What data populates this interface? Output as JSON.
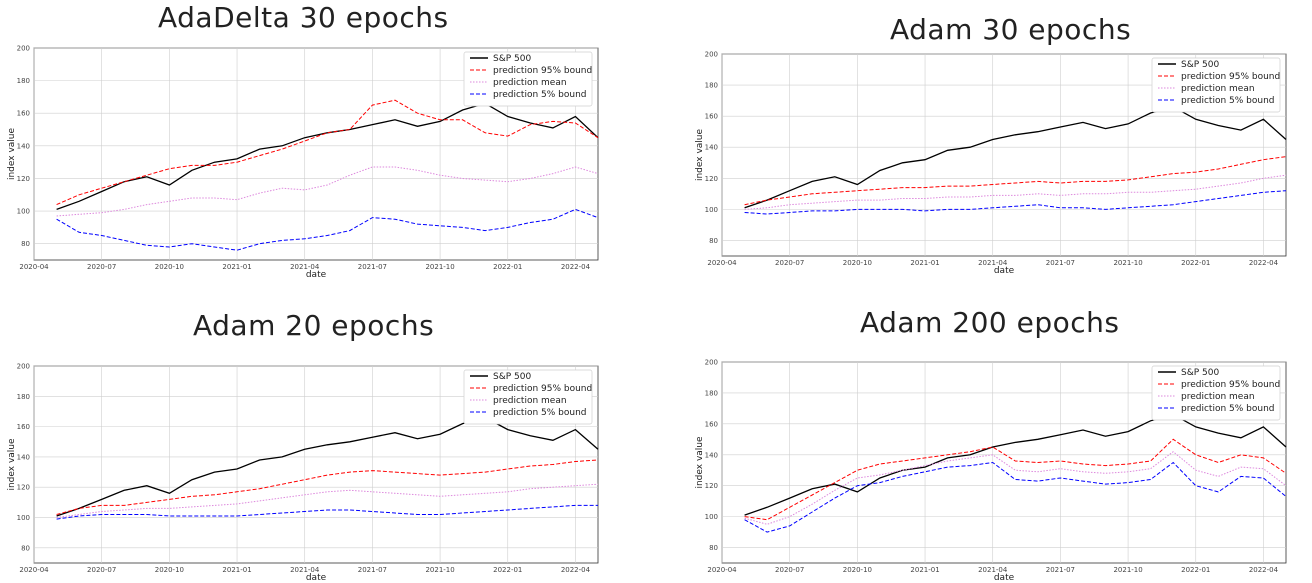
{
  "chart_data": [
    {
      "type": "line",
      "panel_title": "AdaDelta 30 epochs",
      "xlabel": "date",
      "ylabel": "index value",
      "ylim": [
        70,
        200
      ],
      "yticks": [
        80,
        100,
        120,
        140,
        160,
        180,
        200
      ],
      "xlim": [
        "2020-04",
        "2022-05"
      ],
      "xticks": [
        "2020-04",
        "2020-07",
        "2020-10",
        "2021-01",
        "2021-04",
        "2021-07",
        "2021-10",
        "2022-01",
        "2022-04"
      ],
      "grid": true,
      "legend_position": "top-right",
      "x": [
        "2020-05",
        "2020-06",
        "2020-07",
        "2020-08",
        "2020-09",
        "2020-10",
        "2020-11",
        "2020-12",
        "2021-01",
        "2021-02",
        "2021-03",
        "2021-04",
        "2021-05",
        "2021-06",
        "2021-07",
        "2021-08",
        "2021-09",
        "2021-10",
        "2021-11",
        "2021-12",
        "2022-01",
        "2022-02",
        "2022-03",
        "2022-04",
        "2022-05"
      ],
      "series": [
        {
          "name": "S&P 500",
          "color": "#000000",
          "style": "solid",
          "values": [
            101,
            106,
            112,
            118,
            121,
            116,
            125,
            130,
            132,
            138,
            140,
            145,
            148,
            150,
            153,
            156,
            152,
            155,
            162,
            166,
            158,
            154,
            151,
            158,
            145
          ]
        },
        {
          "name": "prediction 95% bound",
          "color": "#ff0000",
          "style": "dashed",
          "values": [
            104,
            110,
            114,
            118,
            122,
            126,
            128,
            128,
            130,
            134,
            138,
            143,
            148,
            150,
            165,
            168,
            160,
            156,
            156,
            148,
            146,
            153,
            155,
            154,
            145
          ]
        },
        {
          "name": "prediction mean",
          "color": "#dd88dd",
          "style": "dotted",
          "values": [
            97,
            98,
            99,
            101,
            104,
            106,
            108,
            108,
            107,
            111,
            114,
            113,
            116,
            122,
            127,
            127,
            125,
            122,
            120,
            119,
            118,
            120,
            123,
            127,
            123
          ]
        },
        {
          "name": "prediction 5% bound",
          "color": "#0000ff",
          "style": "dashed",
          "values": [
            95,
            87,
            85,
            82,
            79,
            78,
            80,
            78,
            76,
            80,
            82,
            83,
            85,
            88,
            96,
            95,
            92,
            91,
            90,
            88,
            90,
            93,
            95,
            101,
            96
          ]
        }
      ]
    },
    {
      "type": "line",
      "panel_title": "Adam 30 epochs",
      "xlabel": "date",
      "ylabel": "index value",
      "ylim": [
        70,
        200
      ],
      "yticks": [
        80,
        100,
        120,
        140,
        160,
        180,
        200
      ],
      "xlim": [
        "2020-04",
        "2022-05"
      ],
      "xticks": [
        "2020-04",
        "2020-07",
        "2020-10",
        "2021-01",
        "2021-04",
        "2021-07",
        "2021-10",
        "2022-01",
        "2022-04"
      ],
      "grid": true,
      "legend_position": "top-right",
      "x": [
        "2020-05",
        "2020-06",
        "2020-07",
        "2020-08",
        "2020-09",
        "2020-10",
        "2020-11",
        "2020-12",
        "2021-01",
        "2021-02",
        "2021-03",
        "2021-04",
        "2021-05",
        "2021-06",
        "2021-07",
        "2021-08",
        "2021-09",
        "2021-10",
        "2021-11",
        "2021-12",
        "2022-01",
        "2022-02",
        "2022-03",
        "2022-04",
        "2022-05"
      ],
      "series": [
        {
          "name": "S&P 500",
          "color": "#000000",
          "style": "solid",
          "values": [
            101,
            106,
            112,
            118,
            121,
            116,
            125,
            130,
            132,
            138,
            140,
            145,
            148,
            150,
            153,
            156,
            152,
            155,
            162,
            166,
            158,
            154,
            151,
            158,
            145
          ]
        },
        {
          "name": "prediction 95% bound",
          "color": "#ff0000",
          "style": "dashed",
          "values": [
            103,
            106,
            108,
            110,
            111,
            112,
            113,
            114,
            114,
            115,
            115,
            116,
            117,
            118,
            117,
            118,
            118,
            119,
            121,
            123,
            124,
            126,
            129,
            132,
            134
          ]
        },
        {
          "name": "prediction mean",
          "color": "#dd88dd",
          "style": "dotted",
          "values": [
            100,
            101,
            103,
            104,
            105,
            106,
            106,
            107,
            107,
            108,
            108,
            109,
            109,
            110,
            109,
            110,
            110,
            111,
            111,
            112,
            113,
            115,
            117,
            120,
            122
          ]
        },
        {
          "name": "prediction 5% bound",
          "color": "#0000ff",
          "style": "dashed",
          "values": [
            98,
            97,
            98,
            99,
            99,
            100,
            100,
            100,
            99,
            100,
            100,
            101,
            102,
            103,
            101,
            101,
            100,
            101,
            102,
            103,
            105,
            107,
            109,
            111,
            112
          ]
        }
      ]
    },
    {
      "type": "line",
      "panel_title": "Adam 20 epochs",
      "xlabel": "date",
      "ylabel": "index value",
      "ylim": [
        70,
        200
      ],
      "yticks": [
        80,
        100,
        120,
        140,
        160,
        180,
        200
      ],
      "xlim": [
        "2020-04",
        "2022-05"
      ],
      "xticks": [
        "2020-04",
        "2020-07",
        "2020-10",
        "2021-01",
        "2021-04",
        "2021-07",
        "2021-10",
        "2022-01",
        "2022-04"
      ],
      "grid": true,
      "legend_position": "top-right",
      "x": [
        "2020-05",
        "2020-06",
        "2020-07",
        "2020-08",
        "2020-09",
        "2020-10",
        "2020-11",
        "2020-12",
        "2021-01",
        "2021-02",
        "2021-03",
        "2021-04",
        "2021-05",
        "2021-06",
        "2021-07",
        "2021-08",
        "2021-09",
        "2021-10",
        "2021-11",
        "2021-12",
        "2022-01",
        "2022-02",
        "2022-03",
        "2022-04",
        "2022-05"
      ],
      "series": [
        {
          "name": "S&P 500",
          "color": "#000000",
          "style": "solid",
          "values": [
            101,
            106,
            112,
            118,
            121,
            116,
            125,
            130,
            132,
            138,
            140,
            145,
            148,
            150,
            153,
            156,
            152,
            155,
            162,
            166,
            158,
            154,
            151,
            158,
            145
          ]
        },
        {
          "name": "prediction 95% bound",
          "color": "#ff0000",
          "style": "dashed",
          "values": [
            102,
            106,
            108,
            108,
            110,
            112,
            114,
            115,
            117,
            119,
            122,
            125,
            128,
            130,
            131,
            130,
            129,
            128,
            129,
            130,
            132,
            134,
            135,
            137,
            138
          ]
        },
        {
          "name": "prediction mean",
          "color": "#dd88dd",
          "style": "dotted",
          "values": [
            100,
            102,
            104,
            105,
            106,
            106,
            107,
            108,
            109,
            111,
            113,
            115,
            117,
            118,
            117,
            116,
            115,
            114,
            115,
            116,
            117,
            119,
            120,
            121,
            122
          ]
        },
        {
          "name": "prediction 5% bound",
          "color": "#0000ff",
          "style": "dashed",
          "values": [
            99,
            101,
            102,
            102,
            102,
            101,
            101,
            101,
            101,
            102,
            103,
            104,
            105,
            105,
            104,
            103,
            102,
            102,
            103,
            104,
            105,
            106,
            107,
            108,
            108
          ]
        }
      ]
    },
    {
      "type": "line",
      "panel_title": "Adam 200 epochs",
      "xlabel": "date",
      "ylabel": "index value",
      "ylim": [
        70,
        200
      ],
      "yticks": [
        80,
        100,
        120,
        140,
        160,
        180,
        200
      ],
      "xlim": [
        "2020-04",
        "2022-05"
      ],
      "xticks": [
        "2020-04",
        "2020-07",
        "2020-10",
        "2021-01",
        "2021-04",
        "2021-07",
        "2021-10",
        "2022-01",
        "2022-04"
      ],
      "grid": true,
      "legend_position": "top-right",
      "x": [
        "2020-05",
        "2020-06",
        "2020-07",
        "2020-08",
        "2020-09",
        "2020-10",
        "2020-11",
        "2020-12",
        "2021-01",
        "2021-02",
        "2021-03",
        "2021-04",
        "2021-05",
        "2021-06",
        "2021-07",
        "2021-08",
        "2021-09",
        "2021-10",
        "2021-11",
        "2021-12",
        "2022-01",
        "2022-02",
        "2022-03",
        "2022-04",
        "2022-05"
      ],
      "series": [
        {
          "name": "S&P 500",
          "color": "#000000",
          "style": "solid",
          "values": [
            101,
            106,
            112,
            118,
            121,
            116,
            125,
            130,
            132,
            138,
            140,
            145,
            148,
            150,
            153,
            156,
            152,
            155,
            162,
            166,
            158,
            154,
            151,
            158,
            145
          ]
        },
        {
          "name": "prediction 95% bound",
          "color": "#ff0000",
          "style": "dashed",
          "values": [
            100,
            98,
            106,
            114,
            122,
            130,
            134,
            136,
            138,
            140,
            142,
            145,
            136,
            135,
            136,
            134,
            133,
            134,
            136,
            150,
            140,
            135,
            140,
            138,
            128
          ]
        },
        {
          "name": "prediction mean",
          "color": "#dd88dd",
          "style": "dotted",
          "values": [
            99,
            95,
            100,
            108,
            117,
            125,
            127,
            130,
            133,
            136,
            138,
            140,
            130,
            129,
            131,
            129,
            128,
            129,
            131,
            142,
            130,
            126,
            132,
            131,
            120
          ]
        },
        {
          "name": "prediction 5% bound",
          "color": "#0000ff",
          "style": "dashed",
          "values": [
            98,
            90,
            94,
            103,
            112,
            120,
            122,
            126,
            129,
            132,
            133,
            135,
            124,
            123,
            125,
            123,
            121,
            122,
            124,
            135,
            120,
            116,
            126,
            125,
            113
          ]
        }
      ]
    }
  ]
}
